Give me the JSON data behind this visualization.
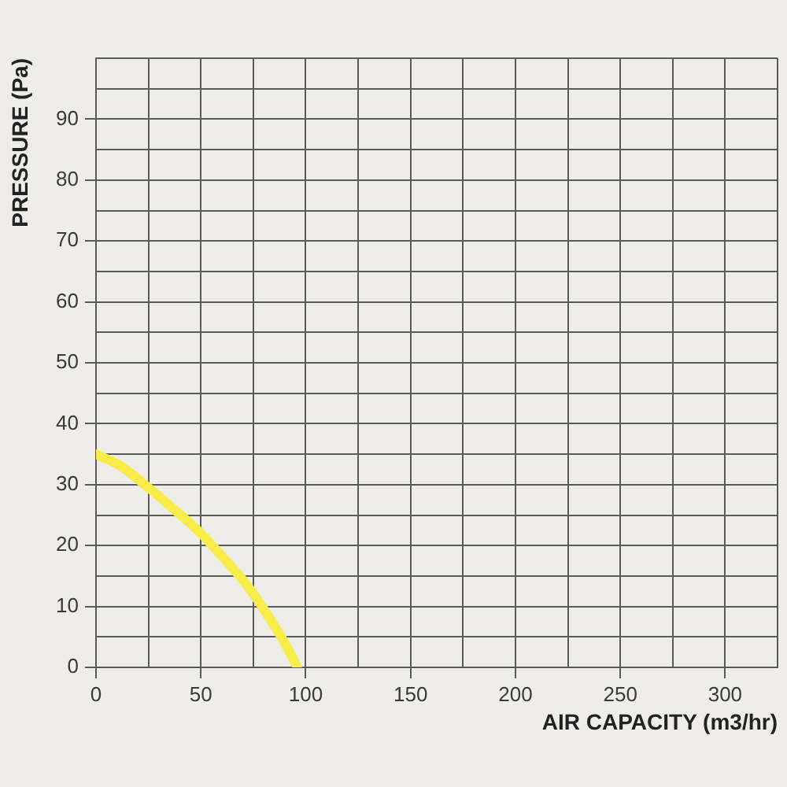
{
  "chart_data": {
    "type": "line",
    "xlabel": "AIR CAPACITY (m3/hr)",
    "ylabel": "PRESSURE (Pa)",
    "xlim": [
      0,
      325
    ],
    "xticks": [
      0,
      {
        "value": 25,
        "label": null
      },
      50,
      {
        "value": 75,
        "label": null
      },
      100,
      {
        "value": 125,
        "label": null
      },
      150,
      {
        "value": 175,
        "label": null
      },
      200,
      {
        "value": 225,
        "label": null
      },
      250,
      {
        "value": 275,
        "label": null
      },
      300,
      {
        "value": 325,
        "label": null
      }
    ],
    "ylim": [
      0,
      100
    ],
    "yticks": [
      0,
      {
        "value": 5,
        "label": null
      },
      10,
      {
        "value": 15,
        "label": null
      },
      20,
      {
        "value": 25,
        "label": null
      },
      30,
      {
        "value": 35,
        "label": null
      },
      40,
      {
        "value": 45,
        "label": null
      },
      50,
      {
        "value": 55,
        "label": null
      },
      60,
      {
        "value": 65,
        "label": null
      },
      70,
      {
        "value": 75,
        "label": null
      },
      80,
      {
        "value": 85,
        "label": null
      },
      90,
      {
        "value": 95,
        "label": null
      },
      {
        "value": 100,
        "label": null
      }
    ],
    "series": [
      {
        "color": "#f7ec48",
        "x": [
          0,
          12,
          25,
          37,
          50,
          62,
          72,
          82,
          90,
          96
        ],
        "values": [
          35,
          33,
          29.5,
          26,
          22,
          17.5,
          13.5,
          8.5,
          4,
          0
        ]
      }
    ],
    "grid": true,
    "marker": "none",
    "line_style": "solid"
  }
}
